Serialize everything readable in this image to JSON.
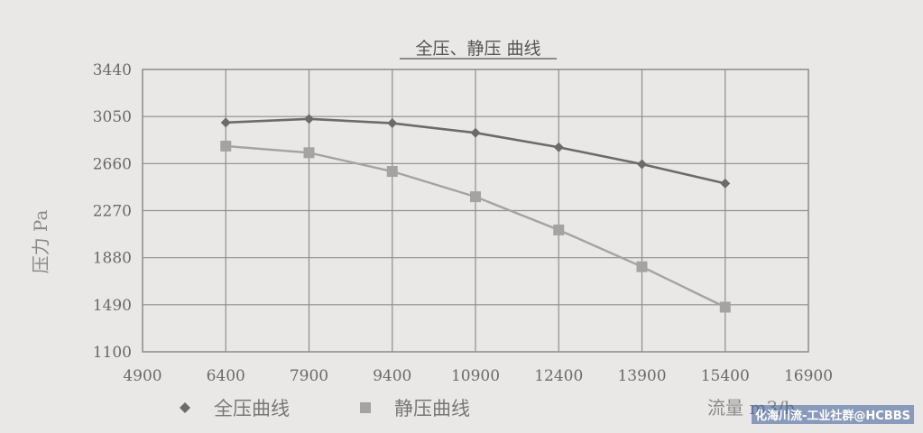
{
  "chart_data": {
    "type": "line",
    "title": "全压、静压 曲线",
    "ylabel": "压力 Pa",
    "xlabel": "流量 m3/h",
    "xlim": [
      4900,
      16900
    ],
    "ylim": [
      1100,
      3440
    ],
    "xticks": [
      "4900",
      "6400",
      "7900",
      "9400",
      "10900",
      "12400",
      "13900",
      "15400",
      "16900"
    ],
    "yticks": [
      "1100",
      "1490",
      "1880",
      "2270",
      "2660",
      "3050",
      "3440"
    ],
    "grid": true,
    "legend_position": "bottom-left",
    "x": [
      6400,
      7900,
      9400,
      10900,
      12400,
      13900,
      15400
    ],
    "series": [
      {
        "name": "全压曲线",
        "marker": "diamond",
        "color": "#6b6b6b",
        "values": [
          3000,
          3030,
          2995,
          2915,
          2795,
          2655,
          2495
        ]
      },
      {
        "name": "静压曲线",
        "marker": "square",
        "color": "#a3a3a3",
        "values": [
          2805,
          2750,
          2595,
          2385,
          2110,
          1805,
          1470
        ]
      }
    ]
  },
  "watermark": "化海川流-工业社群@HCBBS"
}
